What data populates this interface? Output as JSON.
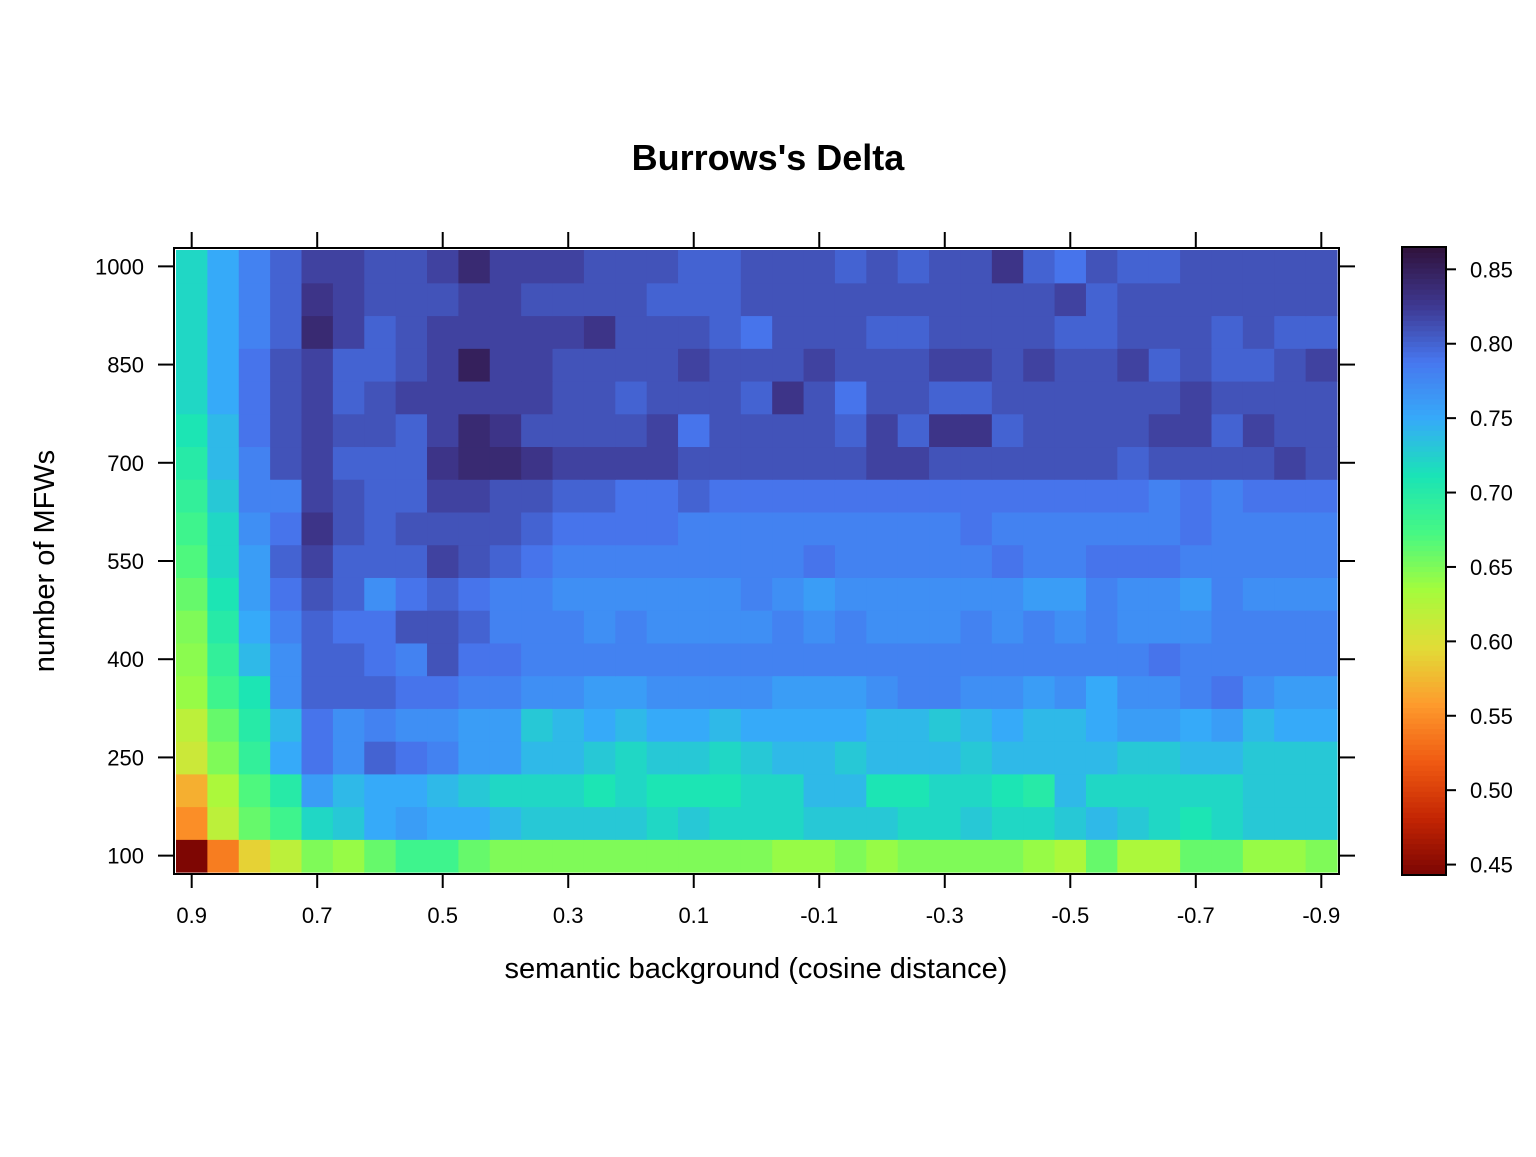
{
  "chart_data": {
    "type": "heatmap",
    "title": "Burrows's Delta",
    "xlabel": "semantic background (cosine distance)",
    "ylabel": "number of MFWs",
    "x_tick_labels": [
      "0.9",
      "0.7",
      "0.5",
      "0.3",
      "0.1",
      "-0.1",
      "-0.3",
      "-0.5",
      "-0.7",
      "-0.9"
    ],
    "y_tick_labels": [
      "100",
      "250",
      "400",
      "550",
      "700",
      "850",
      "1000"
    ],
    "colorbar_tick_labels": [
      "0.45",
      "0.50",
      "0.55",
      "0.60",
      "0.65",
      "0.70",
      "0.75",
      "0.80",
      "0.85"
    ],
    "x": [
      0.9,
      0.85,
      0.8,
      0.75,
      0.7,
      0.65,
      0.6,
      0.55,
      0.5,
      0.45,
      0.4,
      0.35,
      0.3,
      0.25,
      0.2,
      0.15,
      0.1,
      0.05,
      0.0,
      -0.05,
      -0.1,
      -0.15,
      -0.2,
      -0.25,
      -0.3,
      -0.35,
      -0.4,
      -0.45,
      -0.5,
      -0.55,
      -0.6,
      -0.65,
      -0.7,
      -0.75,
      -0.8,
      -0.85,
      -0.9
    ],
    "y": [
      100,
      150,
      200,
      250,
      300,
      350,
      400,
      450,
      500,
      550,
      600,
      650,
      700,
      750,
      800,
      850,
      900,
      950,
      1000
    ],
    "color_range": [
      0.443,
      0.865
    ],
    "colormap": [
      "#7a0403",
      "#c42503",
      "#f05b12",
      "#fe9b2d",
      "#e1dd37",
      "#a4fc3c",
      "#46f884",
      "#1ae4b6",
      "#36aaf9",
      "#4777ef",
      "#3e378f",
      "#30123b"
    ],
    "values": [
      [
        0.445,
        0.54,
        0.59,
        0.62,
        0.65,
        0.64,
        0.66,
        0.68,
        0.68,
        0.66,
        0.65,
        0.65,
        0.65,
        0.65,
        0.65,
        0.65,
        0.65,
        0.65,
        0.65,
        0.64,
        0.64,
        0.65,
        0.64,
        0.65,
        0.65,
        0.65,
        0.65,
        0.64,
        0.63,
        0.66,
        0.63,
        0.63,
        0.66,
        0.66,
        0.64,
        0.64,
        0.65
      ],
      [
        0.55,
        0.62,
        0.66,
        0.68,
        0.72,
        0.73,
        0.75,
        0.76,
        0.75,
        0.75,
        0.74,
        0.73,
        0.73,
        0.73,
        0.73,
        0.72,
        0.73,
        0.72,
        0.72,
        0.72,
        0.73,
        0.73,
        0.73,
        0.72,
        0.72,
        0.73,
        0.72,
        0.72,
        0.73,
        0.74,
        0.73,
        0.72,
        0.71,
        0.72,
        0.73,
        0.73,
        0.73
      ],
      [
        0.57,
        0.63,
        0.67,
        0.7,
        0.76,
        0.74,
        0.75,
        0.75,
        0.74,
        0.73,
        0.72,
        0.72,
        0.72,
        0.71,
        0.72,
        0.71,
        0.71,
        0.71,
        0.72,
        0.72,
        0.74,
        0.74,
        0.71,
        0.71,
        0.72,
        0.72,
        0.71,
        0.7,
        0.74,
        0.72,
        0.72,
        0.72,
        0.72,
        0.72,
        0.73,
        0.73,
        0.73
      ],
      [
        0.61,
        0.65,
        0.69,
        0.75,
        0.79,
        0.77,
        0.8,
        0.79,
        0.78,
        0.76,
        0.76,
        0.74,
        0.74,
        0.73,
        0.72,
        0.73,
        0.73,
        0.72,
        0.73,
        0.74,
        0.74,
        0.73,
        0.74,
        0.74,
        0.74,
        0.73,
        0.74,
        0.74,
        0.74,
        0.74,
        0.73,
        0.73,
        0.74,
        0.74,
        0.73,
        0.73,
        0.73
      ],
      [
        0.62,
        0.66,
        0.7,
        0.74,
        0.79,
        0.77,
        0.78,
        0.77,
        0.77,
        0.76,
        0.76,
        0.73,
        0.74,
        0.75,
        0.74,
        0.75,
        0.75,
        0.74,
        0.75,
        0.75,
        0.75,
        0.75,
        0.74,
        0.74,
        0.73,
        0.74,
        0.75,
        0.74,
        0.74,
        0.75,
        0.76,
        0.76,
        0.75,
        0.76,
        0.74,
        0.75,
        0.75
      ],
      [
        0.64,
        0.68,
        0.71,
        0.77,
        0.8,
        0.8,
        0.8,
        0.79,
        0.79,
        0.78,
        0.78,
        0.77,
        0.77,
        0.76,
        0.76,
        0.77,
        0.77,
        0.77,
        0.77,
        0.76,
        0.76,
        0.76,
        0.77,
        0.78,
        0.78,
        0.77,
        0.77,
        0.76,
        0.77,
        0.75,
        0.77,
        0.77,
        0.78,
        0.79,
        0.77,
        0.76,
        0.76
      ],
      [
        0.645,
        0.69,
        0.74,
        0.77,
        0.8,
        0.8,
        0.79,
        0.78,
        0.81,
        0.79,
        0.79,
        0.78,
        0.78,
        0.78,
        0.78,
        0.78,
        0.78,
        0.78,
        0.78,
        0.78,
        0.78,
        0.78,
        0.78,
        0.78,
        0.78,
        0.78,
        0.78,
        0.78,
        0.78,
        0.78,
        0.78,
        0.79,
        0.78,
        0.78,
        0.78,
        0.78,
        0.78
      ],
      [
        0.65,
        0.7,
        0.75,
        0.78,
        0.8,
        0.79,
        0.79,
        0.81,
        0.81,
        0.8,
        0.78,
        0.78,
        0.78,
        0.77,
        0.78,
        0.77,
        0.77,
        0.77,
        0.77,
        0.78,
        0.77,
        0.78,
        0.77,
        0.77,
        0.77,
        0.78,
        0.77,
        0.78,
        0.77,
        0.78,
        0.77,
        0.77,
        0.77,
        0.78,
        0.78,
        0.78,
        0.78
      ],
      [
        0.66,
        0.71,
        0.76,
        0.79,
        0.81,
        0.8,
        0.77,
        0.79,
        0.8,
        0.79,
        0.78,
        0.78,
        0.77,
        0.77,
        0.77,
        0.77,
        0.77,
        0.77,
        0.78,
        0.77,
        0.76,
        0.77,
        0.77,
        0.77,
        0.77,
        0.77,
        0.77,
        0.76,
        0.76,
        0.78,
        0.77,
        0.77,
        0.76,
        0.78,
        0.77,
        0.77,
        0.77
      ],
      [
        0.67,
        0.72,
        0.76,
        0.8,
        0.82,
        0.8,
        0.8,
        0.8,
        0.82,
        0.81,
        0.8,
        0.79,
        0.78,
        0.78,
        0.78,
        0.78,
        0.78,
        0.78,
        0.78,
        0.78,
        0.79,
        0.78,
        0.78,
        0.78,
        0.78,
        0.78,
        0.79,
        0.78,
        0.78,
        0.79,
        0.79,
        0.79,
        0.78,
        0.78,
        0.78,
        0.78,
        0.78
      ],
      [
        0.68,
        0.72,
        0.77,
        0.79,
        0.83,
        0.81,
        0.8,
        0.81,
        0.81,
        0.81,
        0.81,
        0.8,
        0.79,
        0.79,
        0.79,
        0.79,
        0.78,
        0.78,
        0.78,
        0.78,
        0.78,
        0.78,
        0.78,
        0.78,
        0.78,
        0.79,
        0.78,
        0.78,
        0.78,
        0.78,
        0.78,
        0.78,
        0.79,
        0.78,
        0.78,
        0.78,
        0.78
      ],
      [
        0.69,
        0.73,
        0.78,
        0.78,
        0.82,
        0.81,
        0.8,
        0.8,
        0.82,
        0.82,
        0.81,
        0.81,
        0.8,
        0.8,
        0.79,
        0.79,
        0.8,
        0.79,
        0.79,
        0.79,
        0.79,
        0.79,
        0.79,
        0.79,
        0.79,
        0.79,
        0.79,
        0.79,
        0.79,
        0.79,
        0.79,
        0.78,
        0.79,
        0.78,
        0.79,
        0.79,
        0.79
      ],
      [
        0.7,
        0.74,
        0.78,
        0.81,
        0.82,
        0.8,
        0.8,
        0.8,
        0.83,
        0.84,
        0.84,
        0.83,
        0.82,
        0.82,
        0.82,
        0.82,
        0.81,
        0.81,
        0.81,
        0.81,
        0.81,
        0.81,
        0.82,
        0.82,
        0.81,
        0.81,
        0.81,
        0.81,
        0.81,
        0.81,
        0.8,
        0.81,
        0.81,
        0.81,
        0.81,
        0.82,
        0.81
      ],
      [
        0.71,
        0.74,
        0.79,
        0.81,
        0.82,
        0.81,
        0.81,
        0.8,
        0.82,
        0.84,
        0.83,
        0.81,
        0.81,
        0.81,
        0.81,
        0.82,
        0.79,
        0.81,
        0.81,
        0.81,
        0.81,
        0.8,
        0.82,
        0.8,
        0.83,
        0.83,
        0.8,
        0.81,
        0.81,
        0.81,
        0.81,
        0.82,
        0.82,
        0.8,
        0.82,
        0.81,
        0.81
      ],
      [
        0.72,
        0.75,
        0.79,
        0.81,
        0.82,
        0.8,
        0.81,
        0.82,
        0.82,
        0.82,
        0.82,
        0.82,
        0.81,
        0.81,
        0.8,
        0.81,
        0.81,
        0.81,
        0.8,
        0.83,
        0.81,
        0.79,
        0.81,
        0.81,
        0.8,
        0.8,
        0.81,
        0.81,
        0.81,
        0.81,
        0.81,
        0.81,
        0.82,
        0.81,
        0.81,
        0.81,
        0.81
      ],
      [
        0.72,
        0.75,
        0.79,
        0.81,
        0.82,
        0.8,
        0.8,
        0.81,
        0.82,
        0.85,
        0.82,
        0.82,
        0.81,
        0.81,
        0.81,
        0.81,
        0.82,
        0.81,
        0.81,
        0.81,
        0.82,
        0.81,
        0.81,
        0.81,
        0.82,
        0.82,
        0.81,
        0.82,
        0.81,
        0.81,
        0.82,
        0.8,
        0.81,
        0.8,
        0.8,
        0.81,
        0.82
      ],
      [
        0.72,
        0.75,
        0.78,
        0.8,
        0.84,
        0.82,
        0.8,
        0.81,
        0.82,
        0.82,
        0.82,
        0.82,
        0.82,
        0.83,
        0.81,
        0.81,
        0.81,
        0.8,
        0.79,
        0.81,
        0.81,
        0.81,
        0.8,
        0.8,
        0.81,
        0.81,
        0.81,
        0.81,
        0.8,
        0.8,
        0.81,
        0.81,
        0.81,
        0.8,
        0.81,
        0.8,
        0.8
      ],
      [
        0.72,
        0.75,
        0.78,
        0.8,
        0.83,
        0.82,
        0.81,
        0.81,
        0.81,
        0.82,
        0.82,
        0.81,
        0.81,
        0.81,
        0.81,
        0.8,
        0.8,
        0.8,
        0.81,
        0.81,
        0.81,
        0.81,
        0.81,
        0.81,
        0.81,
        0.81,
        0.81,
        0.81,
        0.82,
        0.8,
        0.81,
        0.81,
        0.81,
        0.81,
        0.81,
        0.81,
        0.81
      ],
      [
        0.72,
        0.75,
        0.78,
        0.8,
        0.82,
        0.82,
        0.81,
        0.81,
        0.82,
        0.84,
        0.82,
        0.82,
        0.82,
        0.81,
        0.81,
        0.81,
        0.8,
        0.8,
        0.81,
        0.81,
        0.81,
        0.8,
        0.81,
        0.8,
        0.81,
        0.81,
        0.83,
        0.8,
        0.79,
        0.81,
        0.8,
        0.8,
        0.81,
        0.81,
        0.81,
        0.81,
        0.81
      ]
    ]
  }
}
